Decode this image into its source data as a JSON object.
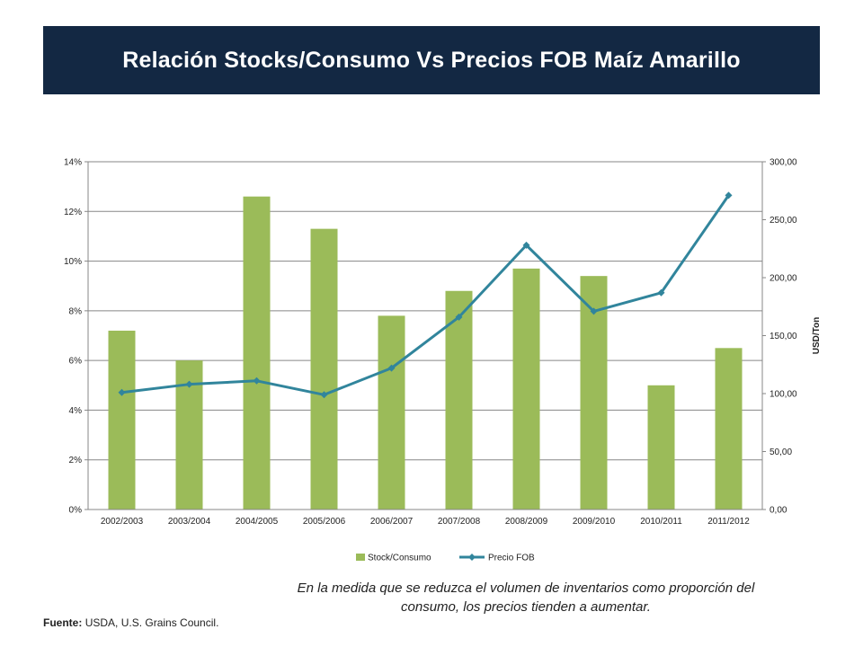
{
  "header": {
    "title": "Relación Stocks/Consumo Vs Precios FOB Maíz Amarillo"
  },
  "caption": "En la medida que se reduzca el volumen de inventarios como proporción del consumo, los precios tienden a aumentar.",
  "source": {
    "label": "Fuente:",
    "text": "USDA, U.S. Grains Council."
  },
  "colors": {
    "title_bg": "#132843",
    "bar": "#9bbb59",
    "line": "#31859c",
    "grid": "#878787"
  },
  "chart_data": {
    "type": "bar+line",
    "categories": [
      "2002/2003",
      "2003/2004",
      "2004/2005",
      "2005/2006",
      "2006/2007",
      "2007/2008",
      "2008/2009",
      "2009/2010",
      "2010/2011",
      "2011/2012"
    ],
    "series": [
      {
        "name": "Stock/Consumo",
        "type": "bar",
        "axis": "left",
        "values": [
          7.2,
          6.0,
          12.6,
          11.3,
          7.8,
          8.8,
          9.7,
          9.4,
          5.0,
          6.5
        ]
      },
      {
        "name": "Precio FOB",
        "type": "line",
        "axis": "right",
        "values": [
          101,
          108,
          111,
          99,
          122,
          166,
          228,
          171,
          187,
          271
        ]
      }
    ],
    "y_left": {
      "ylim": [
        0,
        14
      ],
      "ticks": [
        0,
        2,
        4,
        6,
        8,
        10,
        12,
        14
      ],
      "tick_labels": [
        "0%",
        "2%",
        "4%",
        "6%",
        "8%",
        "10%",
        "12%",
        "14%"
      ]
    },
    "y_right": {
      "label": "USD/Ton",
      "ylim": [
        0,
        300
      ],
      "ticks": [
        0,
        50,
        100,
        150,
        200,
        250,
        300
      ],
      "tick_labels": [
        "0,00",
        "50,00",
        "100,00",
        "150,00",
        "200,00",
        "250,00",
        "300,00"
      ]
    },
    "grid": true,
    "legend_position": "bottom"
  }
}
